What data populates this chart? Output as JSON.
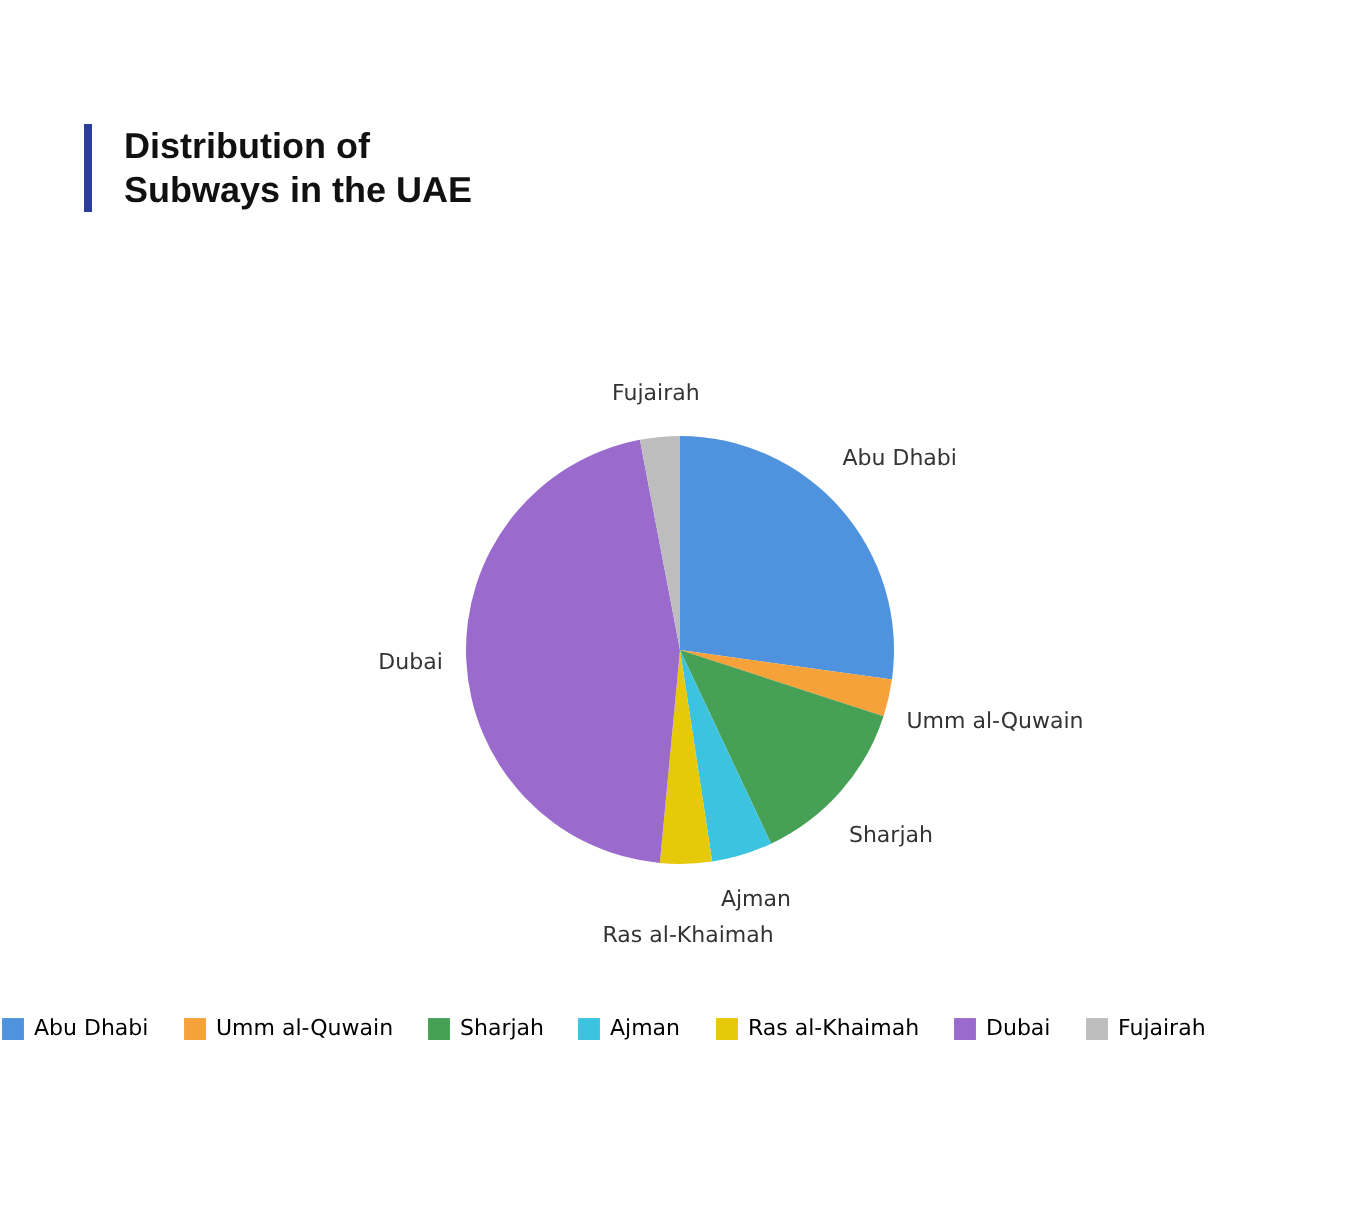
{
  "chart_data": {
    "type": "pie",
    "title": "Distribution of Subways in the UAE",
    "categories": [
      "Abu Dhabi",
      "Umm al-Quwain",
      "Sharjah",
      "Ajman",
      "Ras al-Khaimah",
      "Dubai",
      "Fujairah"
    ],
    "values": [
      27.2,
      2.8,
      13,
      4.6,
      3.9,
      45.5,
      3
    ],
    "colors": [
      "#4f93de",
      "#f7a13a",
      "#46a055",
      "#3cc3e0",
      "#e5c90a",
      "#9a6bcd",
      "#bdbdbd"
    ],
    "legend": "bottom"
  }
}
